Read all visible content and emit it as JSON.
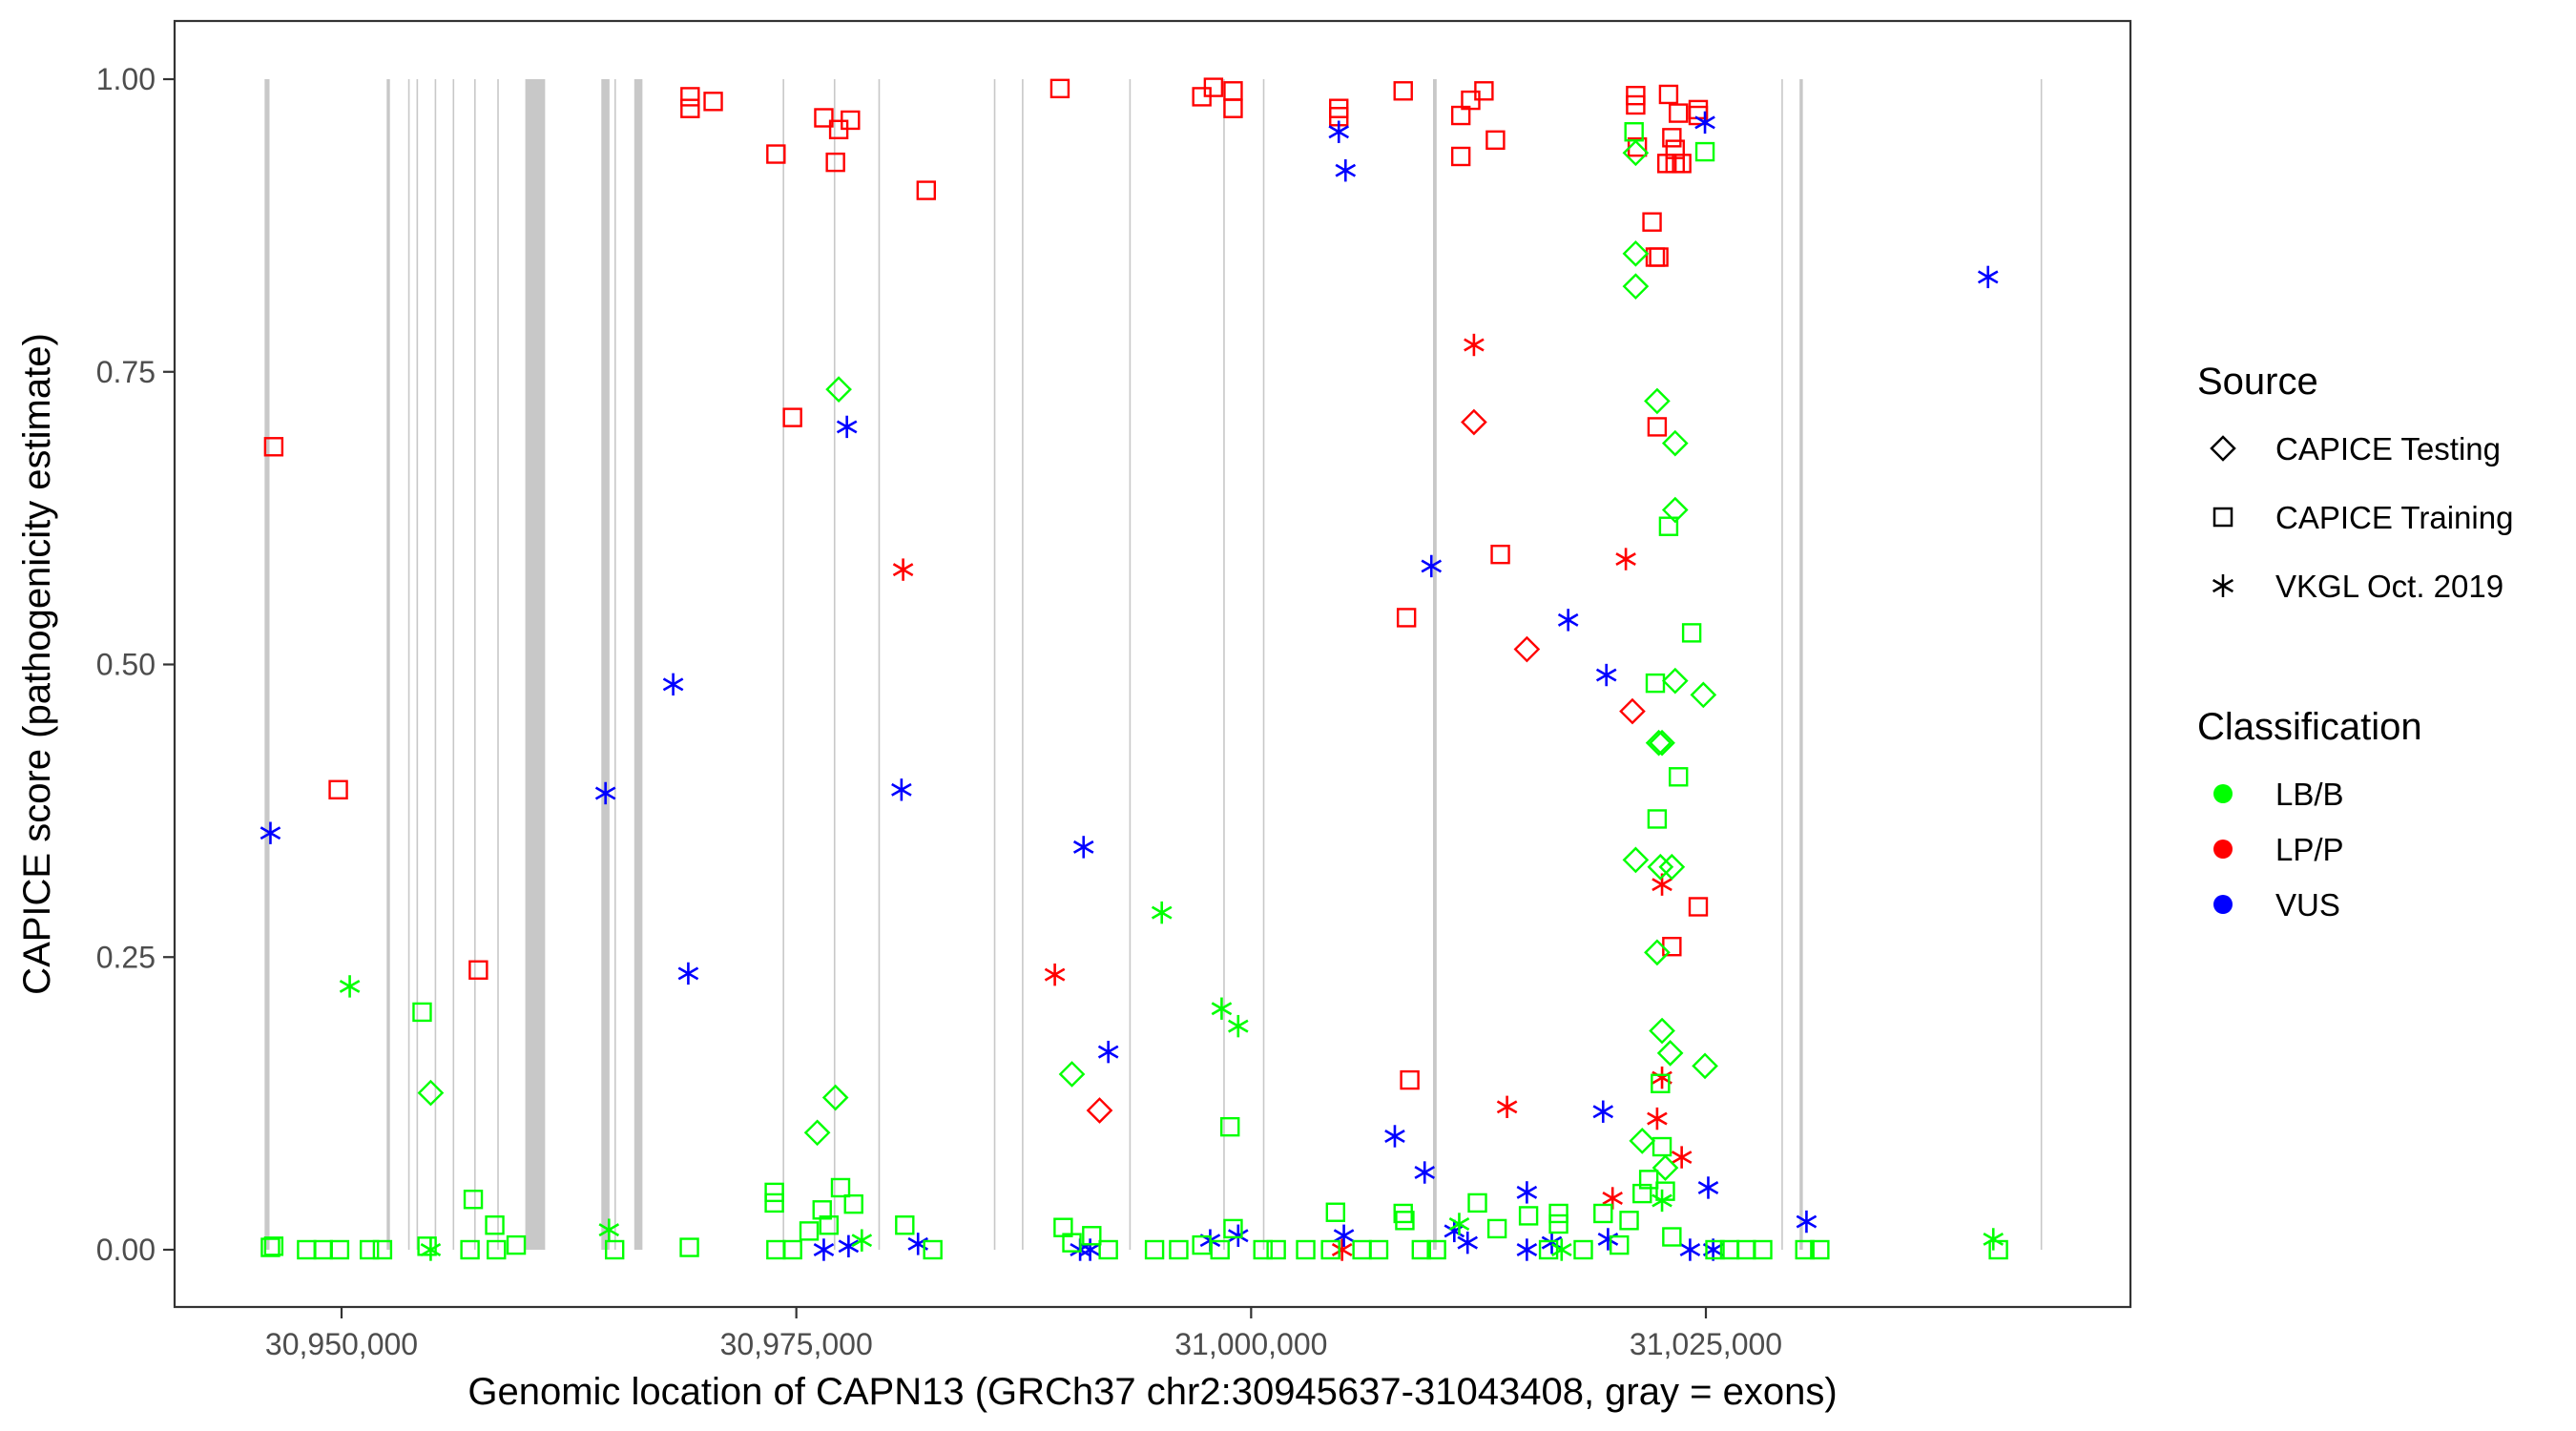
{
  "chart_data": {
    "type": "scatter",
    "title": "",
    "xlabel": "Genomic location of CAPN13 (GRCh37 chr2:30945637-31043408, gray = exons)",
    "ylabel": "CAPICE score (pathogenicity estimate)",
    "xlim": [
      30941500,
      31048000
    ],
    "ylim": [
      -0.05,
      1.05
    ],
    "x_ticks": [
      30950000,
      30975000,
      31000000,
      31025000
    ],
    "x_tick_labels": [
      "30,950,000",
      "30,975,000",
      "31,000,000",
      "31,025,000"
    ],
    "y_ticks": [
      0,
      0.25,
      0.5,
      0.75,
      1.0
    ],
    "y_tick_labels": [
      "0.00",
      "0.25",
      "0.50",
      "0.75",
      "1.00"
    ],
    "grid": false,
    "exon_band_range": [
      0,
      1
    ],
    "exons": [
      [
        30945770,
        30946040
      ],
      [
        30952480,
        30952660
      ],
      [
        30953660
      ],
      [
        30954120
      ],
      [
        30955120
      ],
      [
        30956110
      ],
      [
        30957290
      ],
      [
        30958560
      ],
      [
        30960100,
        30961190
      ],
      [
        30964280,
        30964730
      ],
      [
        30965000
      ],
      [
        30966090,
        30966540
      ],
      [
        30974250
      ],
      [
        30977060
      ],
      [
        30979510
      ],
      [
        30985860
      ],
      [
        30987400
      ],
      [
        30993300
      ],
      [
        30998470
      ],
      [
        31000650
      ],
      [
        31010000,
        31010200
      ],
      [
        31029150
      ],
      [
        31030150,
        31030330
      ],
      [
        31043400
      ]
    ],
    "legend": {
      "position": "right",
      "source": {
        "title": "Source",
        "entries": [
          {
            "label": "CAPICE Testing",
            "shape": "diamond"
          },
          {
            "label": "CAPICE Training",
            "shape": "square"
          },
          {
            "label": "VKGL Oct. 2019",
            "shape": "asterisk"
          }
        ]
      },
      "classification": {
        "title": "Classification",
        "entries": [
          {
            "label": "LB/B",
            "color": "#00ff00"
          },
          {
            "label": "LP/P",
            "color": "#ff0000"
          },
          {
            "label": "VUS",
            "color": "#0000ff"
          }
        ]
      }
    },
    "colors": {
      "LB/B": "#00ff00",
      "LP/P": "#ff0000",
      "VUS": "#0000ff"
    },
    "series": [
      {
        "name": "CAPICE Training / LP/P",
        "source": "CAPICE Training",
        "classification": "LP/P",
        "points": [
          [
            30946270,
            0.686
          ],
          [
            30949820,
            0.393
          ],
          [
            30957520,
            0.239
          ],
          [
            30969160,
            0.985
          ],
          [
            30969160,
            0.975
          ],
          [
            30970430,
            0.981
          ],
          [
            30973880,
            0.936
          ],
          [
            30974790,
            0.711
          ],
          [
            30976510,
            0.967
          ],
          [
            30977150,
            0.929
          ],
          [
            30977330,
            0.957
          ],
          [
            30977970,
            0.965
          ],
          [
            30982140,
            0.905
          ],
          [
            30989490,
            0.992
          ],
          [
            30997290,
            0.985
          ],
          [
            30997930,
            0.993
          ],
          [
            30999010,
            0.99
          ],
          [
            30999010,
            0.975
          ],
          [
            31004820,
            0.975
          ],
          [
            31004820,
            0.968
          ],
          [
            31008360,
            0.99
          ],
          [
            31008540,
            0.54
          ],
          [
            31008720,
            0.145
          ],
          [
            31011530,
            0.969
          ],
          [
            31011530,
            0.934
          ],
          [
            31012070,
            0.982
          ],
          [
            31012800,
            0.99
          ],
          [
            31013430,
            0.948
          ],
          [
            31013700,
            0.594
          ],
          [
            31021140,
            0.986
          ],
          [
            31021140,
            0.978
          ],
          [
            31021230,
            0.942
          ],
          [
            31022040,
            0.878
          ],
          [
            31022220,
            0.848
          ],
          [
            31022410,
            0.848
          ],
          [
            31022320,
            0.703
          ],
          [
            31022860,
            0.928
          ],
          [
            31022950,
            0.987
          ],
          [
            31023130,
            0.95
          ],
          [
            31023310,
            0.94
          ],
          [
            31023310,
            0.928
          ],
          [
            31023490,
            0.971
          ],
          [
            31023670,
            0.928
          ],
          [
            31023130,
            0.259
          ],
          [
            31024580,
            0.969
          ],
          [
            31024580,
            0.974
          ],
          [
            31024580,
            0.293
          ]
        ]
      },
      {
        "name": "CAPICE Testing / LP/P",
        "source": "CAPICE Testing",
        "classification": "LP/P",
        "points": [
          [
            30991670,
            0.119
          ],
          [
            31012250,
            0.707
          ],
          [
            31015160,
            0.513
          ],
          [
            31020960,
            0.46
          ]
        ]
      },
      {
        "name": "VKGL Oct. 2019 / LP/P",
        "source": "VKGL Oct. 2019",
        "classification": "LP/P",
        "points": [
          [
            30980870,
            0.581
          ],
          [
            30989210,
            0.235
          ],
          [
            31005000,
            0.0
          ],
          [
            31012250,
            0.773
          ],
          [
            31014070,
            0.122
          ],
          [
            31020600,
            0.59
          ],
          [
            31019870,
            0.044
          ],
          [
            31022320,
            0.112
          ],
          [
            31022590,
            0.147
          ],
          [
            31022590,
            0.312
          ],
          [
            31023670,
            0.079
          ]
        ]
      },
      {
        "name": "VKGL Oct. 2019 / VUS",
        "source": "VKGL Oct. 2019",
        "classification": "VUS",
        "points": [
          [
            30946090,
            0.356
          ],
          [
            30964510,
            0.39
          ],
          [
            30968230,
            0.483
          ],
          [
            30969060,
            0.236
          ],
          [
            30976510,
            0.0
          ],
          [
            30977780,
            0.703
          ],
          [
            30977870,
            0.003
          ],
          [
            30980780,
            0.393
          ],
          [
            30981690,
            0.005
          ],
          [
            30990600,
            0.0
          ],
          [
            30990790,
            0.344
          ],
          [
            30991150,
            0.0
          ],
          [
            30992150,
            0.169
          ],
          [
            30997750,
            0.008
          ],
          [
            30999290,
            0.012
          ],
          [
            31004820,
            0.955
          ],
          [
            31005190,
            0.922
          ],
          [
            31005100,
            0.012
          ],
          [
            31007900,
            0.097
          ],
          [
            31009540,
            0.066
          ],
          [
            31009910,
            0.584
          ],
          [
            31011170,
            0.016
          ],
          [
            31011900,
            0.006
          ],
          [
            31015160,
            0.049
          ],
          [
            31015160,
            0.0
          ],
          [
            31016530,
            0.006
          ],
          [
            31017430,
            0.538
          ],
          [
            31019350,
            0.118
          ],
          [
            31019530,
            0.491
          ],
          [
            31019620,
            0.009
          ],
          [
            31024130,
            0.0
          ],
          [
            31024950,
            0.963
          ],
          [
            31025130,
            0.053
          ],
          [
            31025400,
            0.0
          ],
          [
            31030530,
            0.024
          ],
          [
            31040510,
            0.831
          ]
        ]
      },
      {
        "name": "VKGL Oct. 2019 / LB/B",
        "source": "VKGL Oct. 2019",
        "classification": "LB/B",
        "points": [
          [
            30950450,
            0.225
          ],
          [
            30954900,
            0.0
          ],
          [
            30964700,
            0.017
          ],
          [
            30978600,
            0.008
          ],
          [
            30995090,
            0.288
          ],
          [
            30998380,
            0.206
          ],
          [
            30999290,
            0.191
          ],
          [
            31011440,
            0.022
          ],
          [
            31017070,
            0.0
          ],
          [
            31022590,
            0.042
          ],
          [
            31040800,
            0.009
          ]
        ]
      },
      {
        "name": "CAPICE Testing / LB/B",
        "source": "CAPICE Testing",
        "classification": "LB/B",
        "points": [
          [
            30954900,
            0.134
          ],
          [
            30976150,
            0.1
          ],
          [
            30977330,
            0.735
          ],
          [
            30977150,
            0.13
          ],
          [
            30990150,
            0.15
          ],
          [
            31021140,
            0.937
          ],
          [
            31021140,
            0.851
          ],
          [
            31021140,
            0.823
          ],
          [
            31021140,
            0.333
          ],
          [
            31021500,
            0.093
          ],
          [
            31022320,
            0.725
          ],
          [
            31022590,
            0.433
          ],
          [
            31022410,
            0.433
          ],
          [
            31022500,
            0.327
          ],
          [
            31022320,
            0.254
          ],
          [
            31022590,
            0.187
          ],
          [
            31023040,
            0.168
          ],
          [
            31023310,
            0.689
          ],
          [
            31023310,
            0.632
          ],
          [
            31023310,
            0.486
          ],
          [
            31023130,
            0.327
          ],
          [
            31024860,
            0.474
          ],
          [
            31024950,
            0.157
          ],
          [
            31022770,
            0.07
          ]
        ]
      },
      {
        "name": "CAPICE Training / LB/B",
        "source": "CAPICE Training",
        "classification": "LB/B",
        "points": [
          [
            30946090,
            0.002
          ],
          [
            30946270,
            0.003
          ],
          [
            30948080,
            0.0
          ],
          [
            30948990,
            0.0
          ],
          [
            30949890,
            0.0
          ],
          [
            30951530,
            0.0
          ],
          [
            30952250,
            0.0
          ],
          [
            30954430,
            0.203
          ],
          [
            30954700,
            0.003
          ],
          [
            30957240,
            0.043
          ],
          [
            30957060,
            0.0
          ],
          [
            30958420,
            0.021
          ],
          [
            30958510,
            0.0
          ],
          [
            30959600,
            0.004
          ],
          [
            30965010,
            0.0
          ],
          [
            30969120,
            0.002
          ],
          [
            30973790,
            0.049
          ],
          [
            30973790,
            0.04
          ],
          [
            30973880,
            0.0
          ],
          [
            30974790,
            0.0
          ],
          [
            30975700,
            0.016
          ],
          [
            30976420,
            0.034
          ],
          [
            30976790,
            0.021
          ],
          [
            30977430,
            0.053
          ],
          [
            30978150,
            0.039
          ],
          [
            30980960,
            0.021
          ],
          [
            30982500,
            0.0
          ],
          [
            30989670,
            0.019
          ],
          [
            30990150,
            0.006
          ],
          [
            30991240,
            0.012
          ],
          [
            30992150,
            0.0
          ],
          [
            30994690,
            0.0
          ],
          [
            30996020,
            0.0
          ],
          [
            30997290,
            0.004
          ],
          [
            30998290,
            0.0
          ],
          [
            30998840,
            0.105
          ],
          [
            30999010,
            0.018
          ],
          [
            31000650,
            0.0
          ],
          [
            31001380,
            0.0
          ],
          [
            31003000,
            0.0
          ],
          [
            31004370,
            0.0
          ],
          [
            31004640,
            0.032
          ],
          [
            31006100,
            0.0
          ],
          [
            31007010,
            0.0
          ],
          [
            31008360,
            0.031
          ],
          [
            31008450,
            0.025
          ],
          [
            31009360,
            0.0
          ],
          [
            31010190,
            0.0
          ],
          [
            31012440,
            0.04
          ],
          [
            31013520,
            0.018
          ],
          [
            31015250,
            0.029
          ],
          [
            31016350,
            0.0
          ],
          [
            31016900,
            0.031
          ],
          [
            31016900,
            0.022
          ],
          [
            31018260,
            0.0
          ],
          [
            31019350,
            0.031
          ],
          [
            31020240,
            0.004
          ],
          [
            31020780,
            0.025
          ],
          [
            31021050,
            0.955
          ],
          [
            31021500,
            0.048
          ],
          [
            31021860,
            0.06
          ],
          [
            31022220,
            0.484
          ],
          [
            31022320,
            0.368
          ],
          [
            31022500,
            0.142
          ],
          [
            31022590,
            0.088
          ],
          [
            31022770,
            0.05
          ],
          [
            31022950,
            0.618
          ],
          [
            31023130,
            0.011
          ],
          [
            31023490,
            0.404
          ],
          [
            31024220,
            0.527
          ],
          [
            31024950,
            0.938
          ],
          [
            31025500,
            0.0
          ],
          [
            31026310,
            0.0
          ],
          [
            31027220,
            0.0
          ],
          [
            31028120,
            0.0
          ],
          [
            31030440,
            0.0
          ],
          [
            31031260,
            0.0
          ],
          [
            31041080,
            0.0
          ]
        ]
      }
    ]
  }
}
